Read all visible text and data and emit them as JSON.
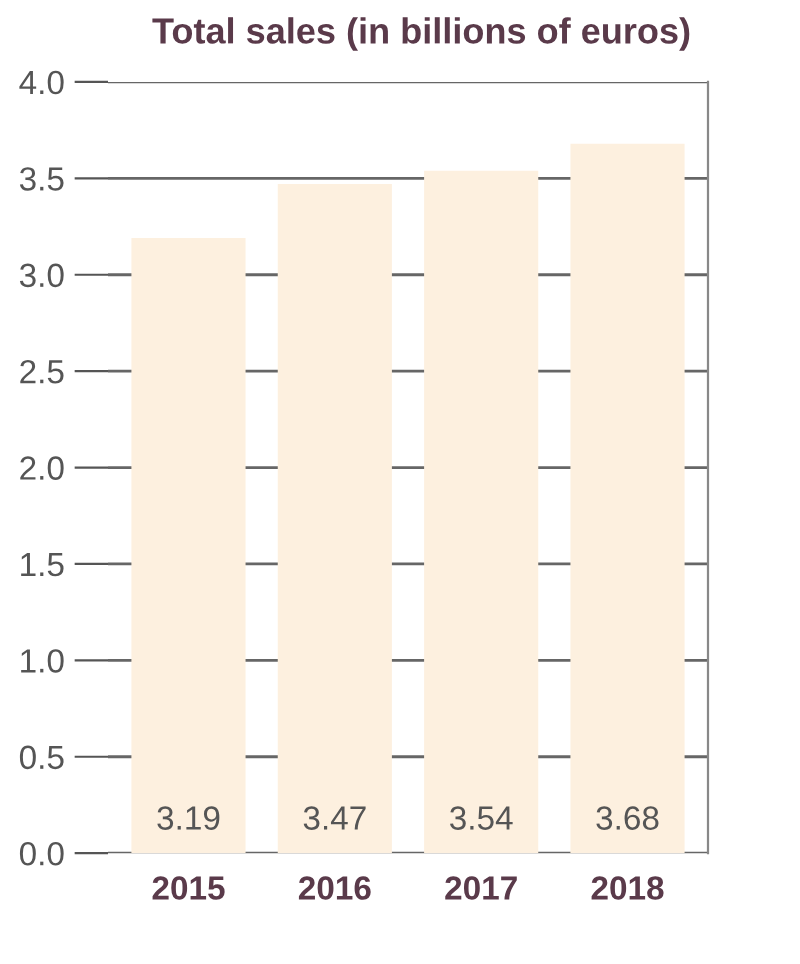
{
  "chart_data": {
    "type": "bar",
    "title": "Total sales (in billions of euros)",
    "categories": [
      "2015",
      "2016",
      "2017",
      "2018"
    ],
    "values": [
      3.19,
      3.47,
      3.54,
      3.68
    ],
    "color": "#fdf0df",
    "ylim": [
      0,
      4.0
    ],
    "yticks": [
      {
        "value": 0,
        "label": "0.0"
      },
      {
        "value": 0.5,
        "label": "0.5"
      },
      {
        "value": 1.0,
        "label": "1.0"
      },
      {
        "value": 1.5,
        "label": "1.5"
      },
      {
        "value": 2.0,
        "label": "2.0"
      },
      {
        "value": 2.5,
        "label": "2.5"
      },
      {
        "value": 3.0,
        "label": "3.0"
      },
      {
        "value": 3.5,
        "label": "3.5"
      },
      {
        "value": 4.0,
        "label": "4.0"
      }
    ],
    "grid": "y",
    "data_labels": true
  }
}
